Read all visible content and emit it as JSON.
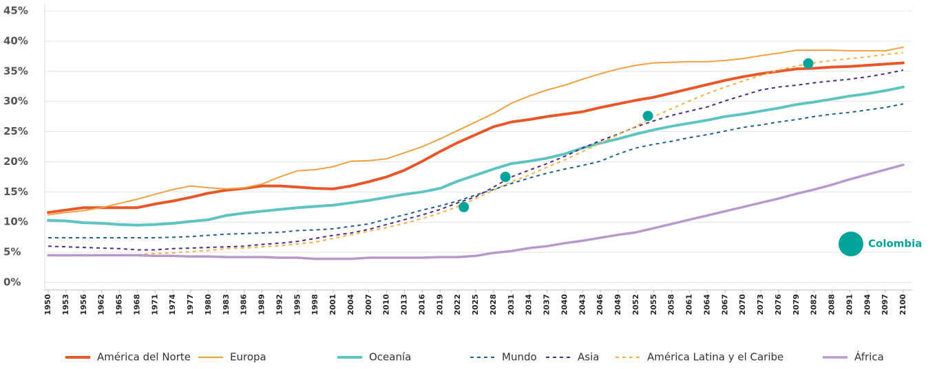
{
  "chart_data": {
    "type": "line",
    "categories": [
      "1950",
      "1953",
      "1956",
      "1962",
      "1965",
      "1968",
      "1971",
      "1974",
      "1977",
      "1980",
      "1983",
      "1986",
      "1989",
      "1992",
      "1995",
      "1998",
      "2001",
      "2004",
      "2007",
      "2010",
      "2013",
      "2016",
      "2019",
      "2022",
      "2025",
      "2028",
      "2031",
      "2034",
      "2037",
      "2040",
      "2043",
      "2046",
      "2049",
      "2052",
      "2055",
      "2058",
      "2061",
      "2064",
      "2067",
      "2070",
      "2073",
      "2076",
      "2079",
      "2082",
      "2088",
      "2091",
      "2094",
      "2097",
      "2100"
    ],
    "ylim": [
      0,
      45
    ],
    "yticks": [
      {
        "value": 0,
        "label": "0%"
      },
      {
        "value": 5,
        "label": "5%"
      },
      {
        "value": 10,
        "label": "10%"
      },
      {
        "value": 15,
        "label": "15%"
      },
      {
        "value": 20,
        "label": "20%"
      },
      {
        "value": 25,
        "label": "25%"
      },
      {
        "value": 30,
        "label": "30%"
      },
      {
        "value": 35,
        "label": "35%"
      },
      {
        "value": 40,
        "label": "40%"
      },
      {
        "value": 45,
        "label": "45%"
      }
    ],
    "grid": true,
    "legend": "bottom",
    "series": [
      {
        "name": "América del Norte",
        "color": "#e8562a",
        "width": 4,
        "dashed": false,
        "values": [
          11.6,
          12.0,
          12.4,
          12.4,
          12.4,
          12.4,
          13.0,
          13.5,
          14.1,
          14.8,
          15.3,
          15.6,
          16.0,
          16.0,
          15.8,
          15.6,
          15.5,
          16.0,
          16.7,
          17.5,
          18.6,
          20.1,
          21.7,
          23.2,
          24.5,
          25.8,
          26.6,
          27.0,
          27.5,
          27.9,
          28.3,
          29.0,
          29.6,
          30.2,
          30.7,
          31.4,
          32.1,
          32.8,
          33.5,
          34.1,
          34.6,
          35.0,
          35.4,
          35.5,
          35.7,
          35.8,
          36.0,
          36.2,
          36.4
        ]
      },
      {
        "name": "Europa",
        "color": "#f0a040",
        "width": 2,
        "dashed": false,
        "values": [
          11.2,
          11.6,
          11.9,
          12.4,
          13.1,
          13.8,
          14.6,
          15.4,
          16.0,
          15.7,
          15.5,
          15.7,
          16.3,
          17.5,
          18.5,
          18.7,
          19.2,
          20.1,
          20.2,
          20.5,
          21.5,
          22.5,
          23.8,
          25.2,
          26.6,
          28.0,
          29.7,
          30.9,
          31.9,
          32.7,
          33.7,
          34.6,
          35.4,
          36.0,
          36.4,
          36.5,
          36.6,
          36.6,
          36.8,
          37.1,
          37.6,
          38.0,
          38.5,
          38.5,
          38.5,
          38.4,
          38.4,
          38.4,
          39.0
        ]
      },
      {
        "name": "Oceanía",
        "color": "#5ec4c1",
        "width": 4,
        "dashed": false,
        "values": [
          10.3,
          10.2,
          9.9,
          9.8,
          9.6,
          9.5,
          9.6,
          9.8,
          10.1,
          10.4,
          11.1,
          11.5,
          11.8,
          12.1,
          12.4,
          12.6,
          12.8,
          13.2,
          13.6,
          14.1,
          14.6,
          15.0,
          15.6,
          16.8,
          17.8,
          18.8,
          19.7,
          20.1,
          20.6,
          21.3,
          22.3,
          23.1,
          23.8,
          24.6,
          25.3,
          25.9,
          26.4,
          26.9,
          27.5,
          27.9,
          28.4,
          28.9,
          29.5,
          29.9,
          30.4,
          30.9,
          31.3,
          31.8,
          32.4
        ]
      },
      {
        "name": "Mundo",
        "color": "#1f5f8b",
        "width": 2,
        "dashed": true,
        "values": [
          7.4,
          7.4,
          7.4,
          7.4,
          7.4,
          7.4,
          7.4,
          7.5,
          7.6,
          7.8,
          8.0,
          8.1,
          8.2,
          8.3,
          8.6,
          8.7,
          8.9,
          9.3,
          9.7,
          10.5,
          11.2,
          12.0,
          12.7,
          13.5,
          14.5,
          15.4,
          16.4,
          17.3,
          18.1,
          18.8,
          19.4,
          20.1,
          21.3,
          22.3,
          22.9,
          23.4,
          24.0,
          24.5,
          25.1,
          25.7,
          26.1,
          26.6,
          27.0,
          27.5,
          27.9,
          28.2,
          28.6,
          29.0,
          29.6
        ]
      },
      {
        "name": "Asia",
        "color": "#4b2a7b",
        "width": 2,
        "dashed": true,
        "values": [
          6.0,
          5.9,
          5.8,
          5.7,
          5.6,
          5.4,
          5.4,
          5.6,
          5.7,
          5.8,
          5.9,
          6.0,
          6.3,
          6.5,
          6.8,
          7.3,
          7.8,
          8.2,
          8.8,
          9.6,
          10.4,
          11.2,
          12.1,
          13.2,
          14.2,
          15.8,
          17.5,
          18.6,
          19.7,
          20.9,
          22.3,
          23.5,
          24.6,
          25.8,
          26.8,
          27.7,
          28.4,
          29.1,
          30.1,
          31.0,
          31.9,
          32.4,
          32.7,
          33.1,
          33.4,
          33.7,
          34.1,
          34.6,
          35.2
        ]
      },
      {
        "name": "América Latina y el Caribe",
        "color": "#f5b043",
        "width": 2,
        "dashed": true,
        "values": [
          4.4,
          4.4,
          4.4,
          4.5,
          4.5,
          4.6,
          4.8,
          4.9,
          5.1,
          5.3,
          5.6,
          5.7,
          5.9,
          6.1,
          6.4,
          6.7,
          7.3,
          7.9,
          8.5,
          9.1,
          9.8,
          10.6,
          11.5,
          12.6,
          13.9,
          15.3,
          16.7,
          17.8,
          19.1,
          20.3,
          21.7,
          23.1,
          24.5,
          25.9,
          27.5,
          28.8,
          30.1,
          31.3,
          32.4,
          33.4,
          34.3,
          35.2,
          35.9,
          36.4,
          36.8,
          37.1,
          37.4,
          37.8,
          38.1
        ]
      },
      {
        "name": "África",
        "color": "#b79acb",
        "width": 3.5,
        "dashed": false,
        "values": [
          4.5,
          4.5,
          4.5,
          4.5,
          4.5,
          4.5,
          4.4,
          4.4,
          4.3,
          4.3,
          4.2,
          4.2,
          4.2,
          4.1,
          4.1,
          3.9,
          3.9,
          3.9,
          4.1,
          4.1,
          4.1,
          4.1,
          4.2,
          4.2,
          4.4,
          4.9,
          5.2,
          5.7,
          6.0,
          6.5,
          6.9,
          7.4,
          7.9,
          8.3,
          9.0,
          9.7,
          10.4,
          11.1,
          11.8,
          12.5,
          13.2,
          13.9,
          14.7,
          15.4,
          16.2,
          17.1,
          17.9,
          18.7,
          19.5
        ]
      }
    ],
    "points": {
      "name": "Colombia",
      "color": "#00a39a",
      "x": [
        2023,
        2030,
        2054,
        2081
      ],
      "values": [
        12.5,
        17.5,
        27.6,
        36.3
      ]
    }
  }
}
